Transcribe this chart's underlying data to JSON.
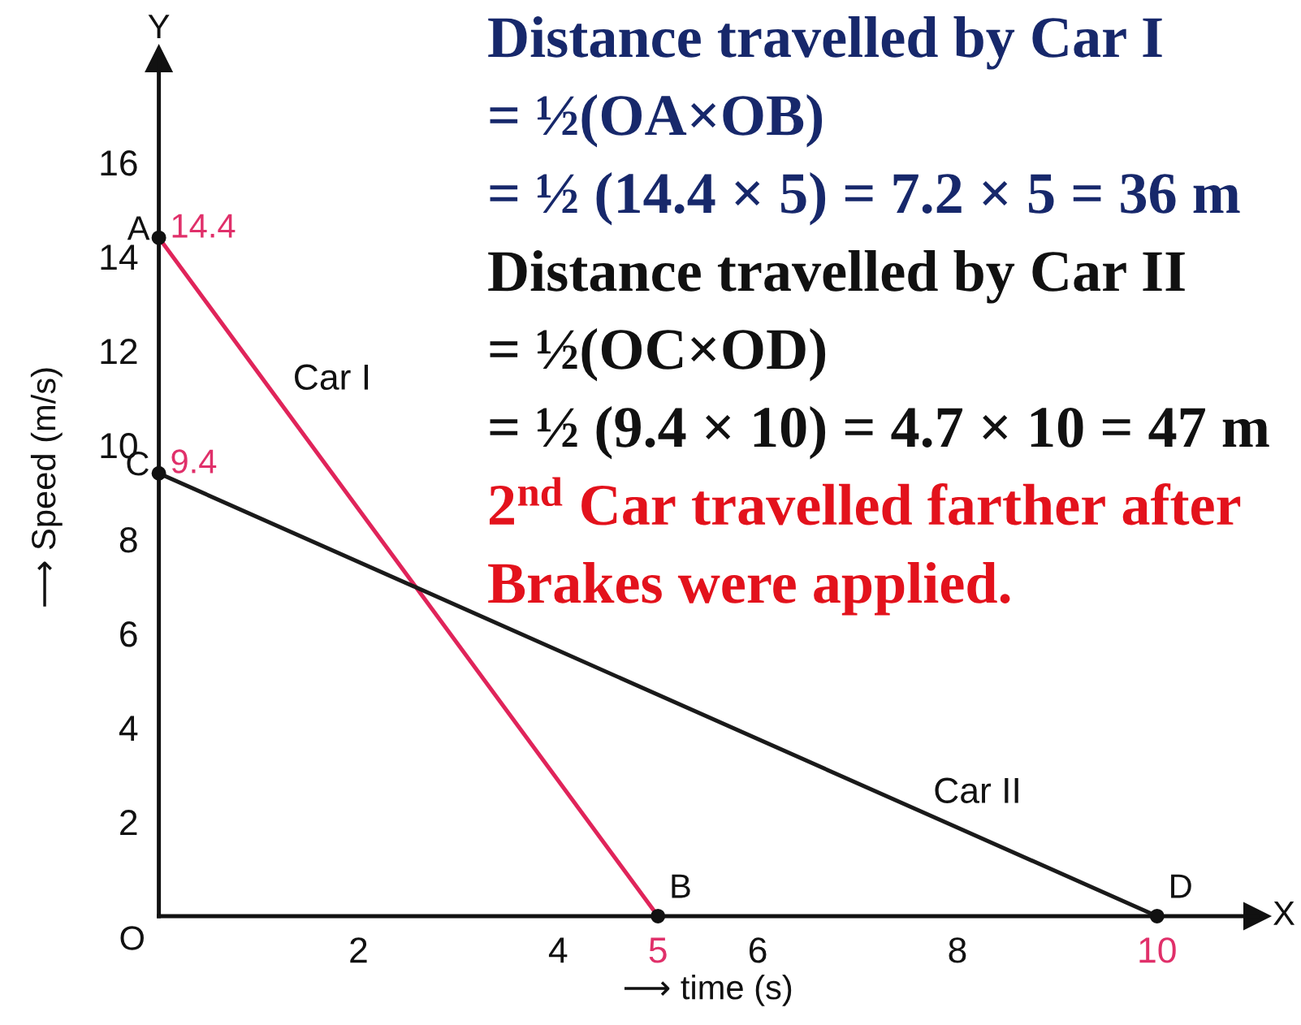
{
  "chart_data": {
    "type": "line",
    "xlabel": "⟶ time (s)",
    "ylabel": "⟶ Speed (m/s)",
    "series": [
      {
        "name": "Car I",
        "color": "#e0245a",
        "x": [
          0,
          5
        ],
        "values": [
          14.4,
          0
        ],
        "value_labels": [
          "14.4",
          null
        ]
      },
      {
        "name": "Car II",
        "color": "#1a1a1a",
        "x": [
          0,
          10
        ],
        "values": [
          9.4,
          0
        ],
        "value_labels": [
          "9.4",
          null
        ]
      }
    ],
    "xlim": [
      0,
      11
    ],
    "ylim": [
      0,
      18.2
    ],
    "xticks": [
      2,
      4,
      5,
      6,
      8,
      10
    ],
    "yticks": [
      2,
      4,
      6,
      8,
      10,
      12,
      14,
      16
    ],
    "marker": "circle",
    "line_style": "solid",
    "annotations": [
      {
        "text": "A",
        "x": 0,
        "y": 14.4
      },
      {
        "text": "B",
        "x": 5,
        "y": 0
      },
      {
        "text": "C",
        "x": 0,
        "y": 9.4
      },
      {
        "text": "D",
        "x": 10,
        "y": 0
      },
      "O",
      {
        "text": "X",
        "x": 11,
        "y": 0
      },
      {
        "text": "Y",
        "x": 0,
        "y": 18.2
      },
      "Distance travelled by Car I\n= ½(OA×OB)\n= ½ (14.4 × 5) = 7.2 × 5 = 36 m",
      "Distance travelled by Car II\n= ½(OC×OD)\n= ½ (9.4 × 10) = 4.7 × 10 = 47 m",
      "2$^{nd}$ Car travelled farther after\nBrakes were applied."
    ]
  }
}
